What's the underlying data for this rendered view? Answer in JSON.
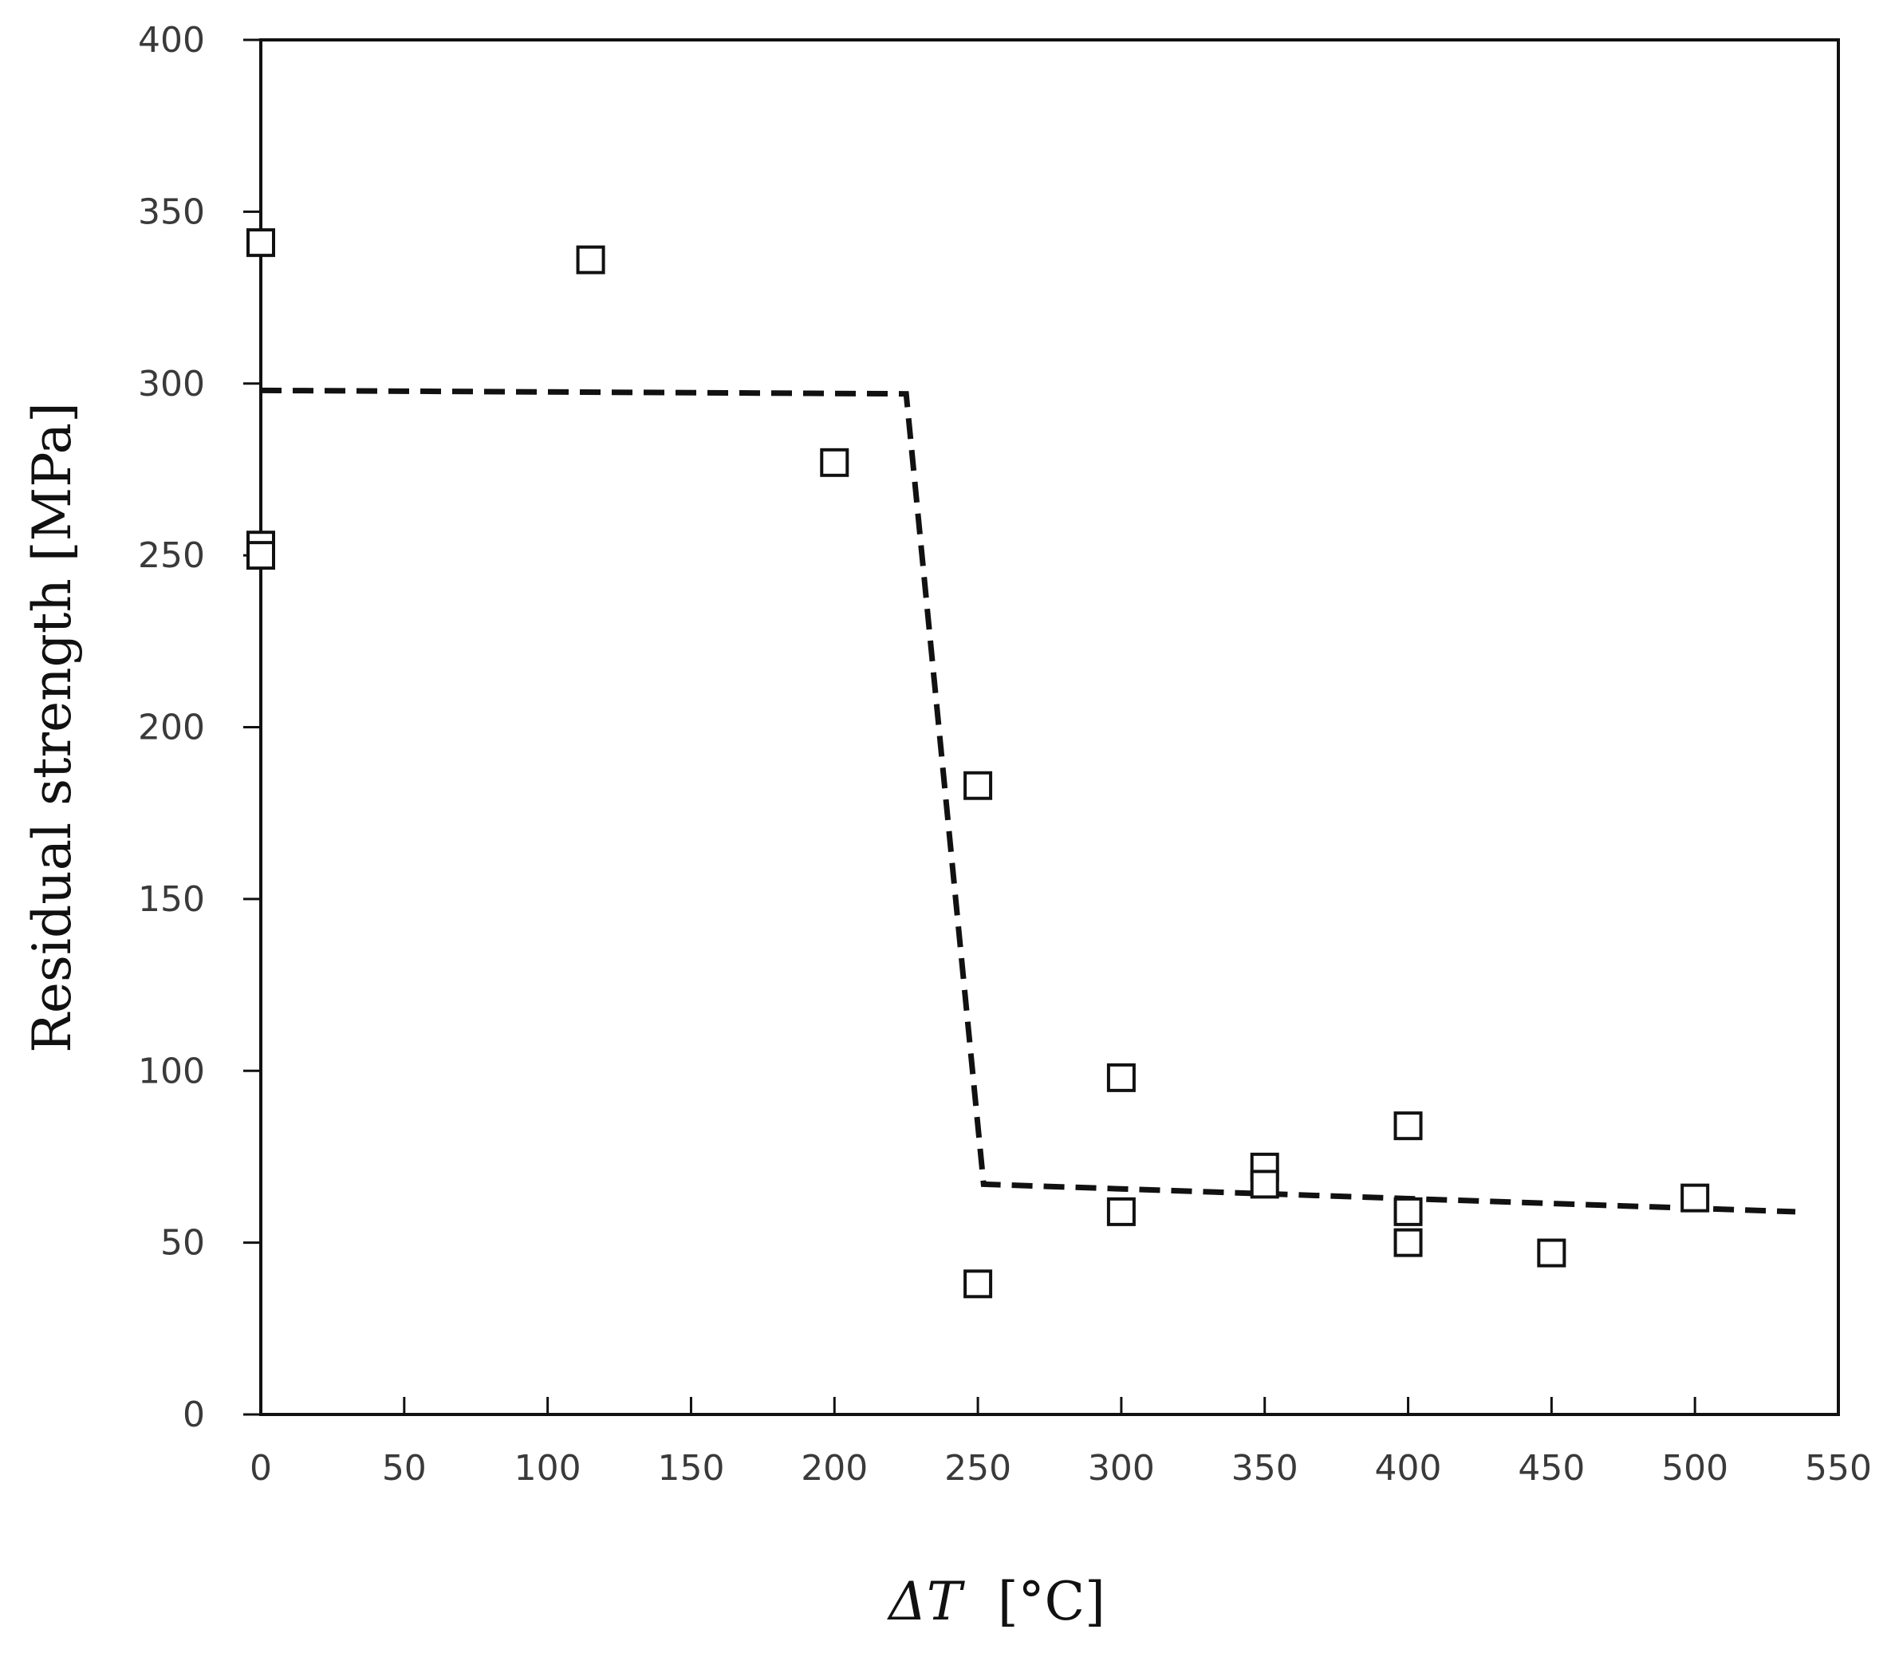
{
  "chart_data": {
    "type": "scatter",
    "title": "",
    "xlabel_symbol": "ΔT",
    "xlabel_unit": "[°C]",
    "ylabel": "Residual strength [MPa]",
    "xlim": [
      0,
      550
    ],
    "ylim": [
      0,
      400
    ],
    "xticks": [
      0,
      50,
      100,
      150,
      200,
      250,
      300,
      350,
      400,
      450,
      500,
      550
    ],
    "yticks": [
      0,
      50,
      100,
      150,
      200,
      250,
      300,
      350,
      400
    ],
    "grid": false,
    "legend": "none",
    "series": [
      {
        "type": "scatter",
        "marker": "open-square",
        "points": [
          {
            "x": 0,
            "y": 341
          },
          {
            "x": 0,
            "y": 253
          },
          {
            "x": 0,
            "y": 250
          },
          {
            "x": 115,
            "y": 336
          },
          {
            "x": 200,
            "y": 277
          },
          {
            "x": 250,
            "y": 183
          },
          {
            "x": 250,
            "y": 38
          },
          {
            "x": 300,
            "y": 98
          },
          {
            "x": 300,
            "y": 59
          },
          {
            "x": 350,
            "y": 72
          },
          {
            "x": 350,
            "y": 67
          },
          {
            "x": 400,
            "y": 84
          },
          {
            "x": 400,
            "y": 59
          },
          {
            "x": 400,
            "y": 50
          },
          {
            "x": 450,
            "y": 47
          },
          {
            "x": 500,
            "y": 63
          }
        ]
      },
      {
        "type": "line",
        "style": "dashed",
        "color": "#111111",
        "points": [
          {
            "x": 0,
            "y": 298
          },
          {
            "x": 225,
            "y": 297
          },
          {
            "x": 252,
            "y": 67
          },
          {
            "x": 535,
            "y": 59
          }
        ]
      }
    ]
  }
}
